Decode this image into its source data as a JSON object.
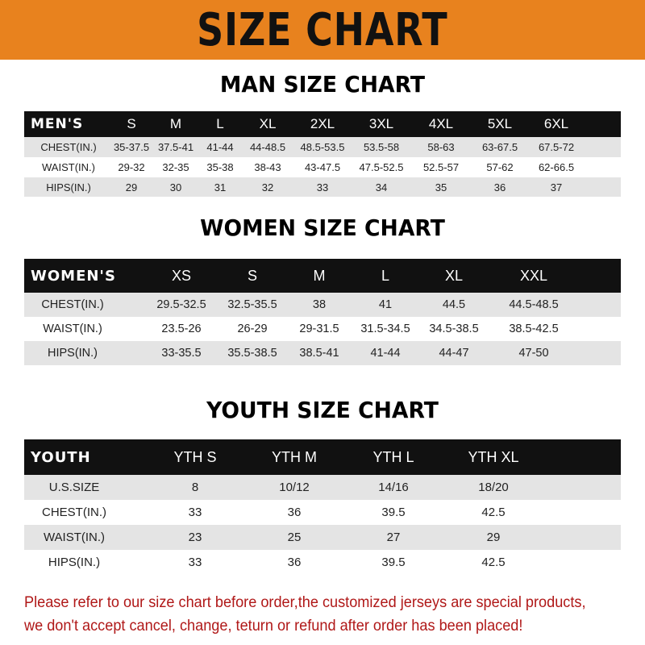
{
  "header": {
    "title": "SIZE CHART",
    "color": "#E8821E"
  },
  "men": {
    "title": "MAN SIZE CHART",
    "headers": [
      "MEN'S",
      "S",
      "M",
      "L",
      "XL",
      "2XL",
      "3XL",
      "4XL",
      "5XL",
      "6XL"
    ],
    "rows": [
      [
        "CHEST(IN.)",
        "35-37.5",
        "37.5-41",
        "41-44",
        "44-48.5",
        "48.5-53.5",
        "53.5-58",
        "58-63",
        "63-67.5",
        "67.5-72"
      ],
      [
        "WAIST(IN.)",
        "29-32",
        "32-35",
        "35-38",
        "38-43",
        "43-47.5",
        "47.5-52.5",
        "52.5-57",
        "57-62",
        "62-66.5"
      ],
      [
        "HIPS(IN.)",
        "29",
        "30",
        "31",
        "32",
        "33",
        "34",
        "35",
        "36",
        "37"
      ]
    ]
  },
  "women": {
    "title": "WOMEN SIZE CHART",
    "headers": [
      "WOMEN'S",
      "XS",
      "S",
      "M",
      "L",
      "XL",
      "XXL"
    ],
    "rows": [
      [
        "CHEST(IN.)",
        "29.5-32.5",
        "32.5-35.5",
        "38",
        "41",
        "44.5",
        "44.5-48.5"
      ],
      [
        "WAIST(IN.)",
        "23.5-26",
        "26-29",
        "29-31.5",
        "31.5-34.5",
        "34.5-38.5",
        "38.5-42.5"
      ],
      [
        "HIPS(IN.)",
        "33-35.5",
        "35.5-38.5",
        "38.5-41",
        "41-44",
        "44-47",
        "47-50"
      ]
    ]
  },
  "youth": {
    "title": "YOUTH SIZE CHART",
    "headers": [
      "YOUTH",
      "YTH S",
      "YTH M",
      "YTH L",
      "YTH XL"
    ],
    "rows": [
      [
        "U.S.SIZE",
        "8",
        "10/12",
        "14/16",
        "18/20"
      ],
      [
        "CHEST(IN.)",
        "33",
        "36",
        "39.5",
        "42.5"
      ],
      [
        "WAIST(IN.)",
        "23",
        "25",
        "27",
        "29"
      ],
      [
        "HIPS(IN.)",
        "33",
        "36",
        "39.5",
        "42.5"
      ]
    ]
  },
  "note": {
    "line1": "Please refer to our size chart before order,the customized jerseys are special products,",
    "line2": "we don't accept cancel, change, teturn or refund after order has been placed!",
    "color": "#b01818"
  }
}
